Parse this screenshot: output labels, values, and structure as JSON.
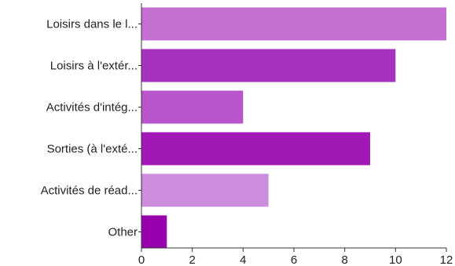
{
  "chart_data": {
    "type": "bar",
    "orientation": "horizontal",
    "title": "",
    "xlabel": "",
    "ylabel": "",
    "categories": [
      "Loisirs dans le l...",
      "Loisirs à l'extér...",
      "Activités d'intég...",
      "Sorties (à l'exté...",
      "Activités de réad...",
      "Other"
    ],
    "values": [
      12,
      10,
      4,
      9,
      5,
      1
    ],
    "colors": [
      "#c46fd1",
      "#a431bf",
      "#b955cb",
      "#a118b7",
      "#cc8ddc",
      "#9800ad"
    ],
    "xlim": [
      0,
      12
    ],
    "ticks": [
      0,
      2,
      4,
      6,
      8,
      10,
      12
    ],
    "grid": false,
    "legend": "none"
  }
}
